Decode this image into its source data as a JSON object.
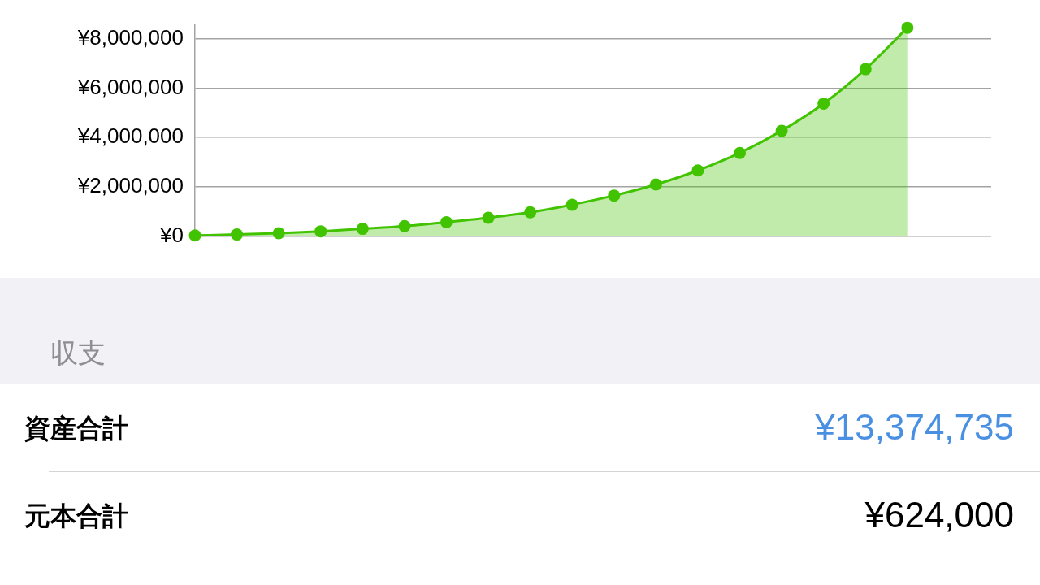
{
  "chart_data": {
    "type": "area",
    "categories": [
      null,
      null,
      null,
      null,
      null,
      null,
      null,
      null,
      null,
      null,
      null,
      null,
      null,
      null,
      null,
      null,
      null,
      null,
      null,
      null
    ],
    "values": [
      20000,
      60000,
      110000,
      190000,
      290000,
      400000,
      560000,
      740000,
      960000,
      1270000,
      1640000,
      2090000,
      2660000,
      3370000,
      4270000,
      5370000,
      6770000,
      8450000,
      null,
      null
    ],
    "color": "#41c300",
    "ylim": [
      0,
      8600000
    ],
    "yticks": [
      {
        "value": 0,
        "label": "¥0"
      },
      {
        "value": 2000000,
        "label": "¥2,000,000"
      },
      {
        "value": 4000000,
        "label": "¥4,000,000"
      },
      {
        "value": 6000000,
        "label": "¥6,000,000"
      },
      {
        "value": 8000000,
        "label": "¥8,000,000"
      }
    ],
    "grid": "y",
    "marker": "circle",
    "annotations": [
      "収支",
      "資産合計",
      "¥13,374,735",
      "元本合計",
      "¥624,000"
    ]
  }
}
